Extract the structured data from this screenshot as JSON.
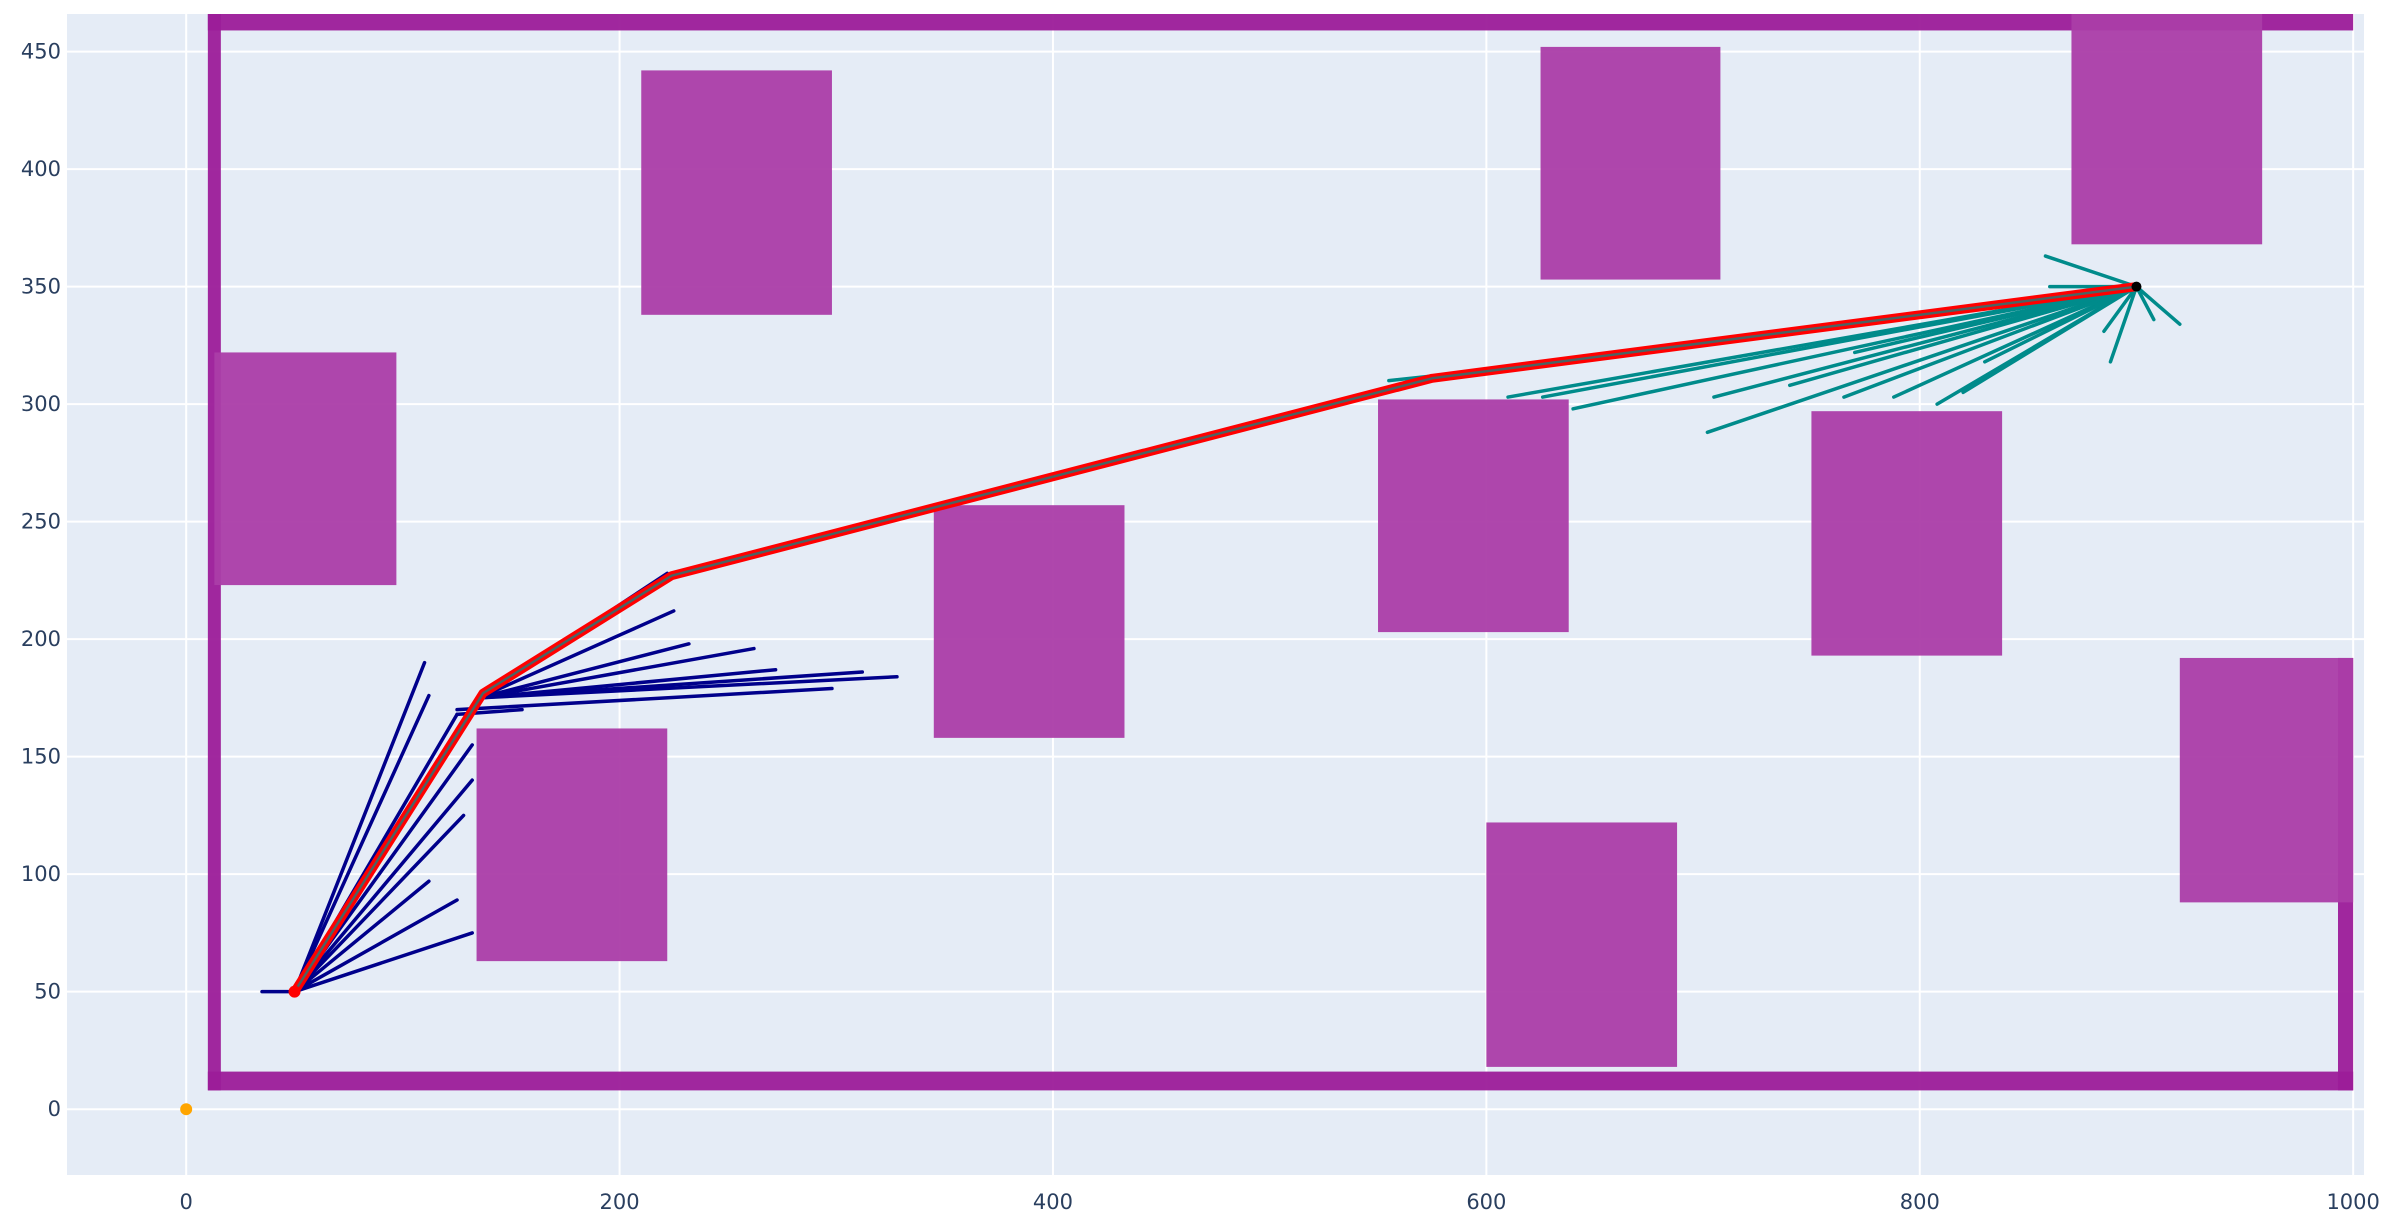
{
  "chart_data": {
    "type": "scatter",
    "title": "",
    "xlabel": "",
    "ylabel": "",
    "xlim": [
      -55,
      1005
    ],
    "ylim": [
      -28,
      466
    ],
    "grid": true,
    "legend": "none",
    "x_ticks": [
      {
        "value": 0,
        "label": "0"
      },
      {
        "value": 200,
        "label": "200"
      },
      {
        "value": 400,
        "label": "400"
      },
      {
        "value": 600,
        "label": "600"
      },
      {
        "value": 800,
        "label": "800"
      },
      {
        "value": 1000,
        "label": "1000"
      }
    ],
    "y_ticks": [
      {
        "value": 0,
        "label": "0"
      },
      {
        "value": 50,
        "label": "50"
      },
      {
        "value": 100,
        "label": "100"
      },
      {
        "value": 150,
        "label": "150"
      },
      {
        "value": 200,
        "label": "200"
      },
      {
        "value": 250,
        "label": "250"
      },
      {
        "value": 300,
        "label": "300"
      },
      {
        "value": 350,
        "label": "350"
      },
      {
        "value": 400,
        "label": "400"
      },
      {
        "value": 450,
        "label": "450"
      }
    ],
    "colors": {
      "plot_bg": "#e5ecf6",
      "grid": "#ffffff",
      "obstacle": "#ab3da8",
      "obstacle_edge": "#9c1c99",
      "tree_start": "#00008b",
      "tree_goal": "#008b8b",
      "path": "#ff0000",
      "origin": "#ffa500"
    },
    "walls": [
      {
        "x0": 10,
        "y0": 459,
        "x1": 1000,
        "y1": 466
      },
      {
        "x0": 10,
        "y0": 8,
        "x1": 1000,
        "y1": 16
      },
      {
        "x0": 10,
        "y0": 8,
        "x1": 16,
        "y1": 466
      },
      {
        "x0": 993,
        "y0": 8,
        "x1": 1000,
        "y1": 192
      }
    ],
    "obstacles": [
      {
        "x0": 210,
        "y0": 338,
        "x1": 298,
        "y1": 442
      },
      {
        "x0": 13,
        "y0": 223,
        "x1": 97,
        "y1": 322
      },
      {
        "x0": 134,
        "y0": 63,
        "x1": 222,
        "y1": 162
      },
      {
        "x0": 345,
        "y0": 158,
        "x1": 433,
        "y1": 257
      },
      {
        "x0": 550,
        "y0": 203,
        "x1": 638,
        "y1": 302
      },
      {
        "x0": 625,
        "y0": 353,
        "x1": 708,
        "y1": 452
      },
      {
        "x0": 600,
        "y0": 18,
        "x1": 688,
        "y1": 122
      },
      {
        "x0": 750,
        "y0": 193,
        "x1": 838,
        "y1": 297
      },
      {
        "x0": 870,
        "y0": 368,
        "x1": 958,
        "y1": 466
      },
      {
        "x0": 920,
        "y0": 88,
        "x1": 1000,
        "y1": 192
      }
    ],
    "start": {
      "x": 50,
      "y": 50
    },
    "goal": {
      "x": 900,
      "y": 350
    },
    "origin_point": {
      "x": 0,
      "y": 0
    },
    "start_tree_edges": [
      [
        [
          50,
          50
        ],
        [
          110,
          190
        ]
      ],
      [
        [
          50,
          50
        ],
        [
          112,
          176
        ]
      ],
      [
        [
          50,
          50
        ],
        [
          132,
          155
        ]
      ],
      [
        [
          50,
          50
        ],
        [
          132,
          140
        ]
      ],
      [
        [
          50,
          50
        ],
        [
          128,
          125
        ]
      ],
      [
        [
          50,
          50
        ],
        [
          112,
          97
        ]
      ],
      [
        [
          50,
          50
        ],
        [
          125,
          89
        ]
      ],
      [
        [
          50,
          50
        ],
        [
          132,
          75
        ]
      ],
      [
        [
          35,
          50
        ],
        [
          50,
          50
        ]
      ],
      [
        [
          50,
          50
        ],
        [
          125,
          168
        ]
      ],
      [
        [
          125,
          168
        ],
        [
          155,
          170
        ]
      ],
      [
        [
          135,
          175
        ],
        [
          225,
          212
        ]
      ],
      [
        [
          135,
          175
        ],
        [
          232,
          198
        ]
      ],
      [
        [
          135,
          175
        ],
        [
          262,
          196
        ]
      ],
      [
        [
          135,
          175
        ],
        [
          272,
          187
        ]
      ],
      [
        [
          135,
          175
        ],
        [
          312,
          186
        ]
      ],
      [
        [
          135,
          175
        ],
        [
          328,
          184
        ]
      ],
      [
        [
          125,
          170
        ],
        [
          298,
          179
        ]
      ],
      [
        [
          135,
          175
        ],
        [
          222,
          228
        ]
      ]
    ],
    "goal_tree_edges": [
      [
        [
          900,
          350
        ],
        [
          858,
          363
        ]
      ],
      [
        [
          900,
          350
        ],
        [
          860,
          350
        ]
      ],
      [
        [
          900,
          350
        ],
        [
          920,
          334
        ]
      ],
      [
        [
          900,
          350
        ],
        [
          908,
          336
        ]
      ],
      [
        [
          900,
          350
        ],
        [
          888,
          318
        ]
      ],
      [
        [
          900,
          350
        ],
        [
          885,
          331
        ]
      ],
      [
        [
          900,
          350
        ],
        [
          610,
          303
        ]
      ],
      [
        [
          900,
          350
        ],
        [
          626,
          303
        ]
      ],
      [
        [
          900,
          350
        ],
        [
          640,
          298
        ]
      ],
      [
        [
          900,
          350
        ],
        [
          702,
          288
        ]
      ],
      [
        [
          900,
          350
        ],
        [
          705,
          303
        ]
      ],
      [
        [
          900,
          350
        ],
        [
          740,
          308
        ]
      ],
      [
        [
          900,
          350
        ],
        [
          765,
          303
        ]
      ],
      [
        [
          900,
          350
        ],
        [
          788,
          303
        ]
      ],
      [
        [
          900,
          350
        ],
        [
          808,
          300
        ]
      ],
      [
        [
          900,
          350
        ],
        [
          820,
          305
        ]
      ],
      [
        [
          900,
          350
        ],
        [
          770,
          322
        ]
      ],
      [
        [
          900,
          350
        ],
        [
          830,
          318
        ]
      ],
      [
        [
          900,
          350
        ],
        [
          575,
          312
        ]
      ],
      [
        [
          575,
          312
        ],
        [
          555,
          310
        ]
      ]
    ],
    "path": [
      {
        "x": 50,
        "y": 50
      },
      {
        "x": 137,
        "y": 177
      },
      {
        "x": 224,
        "y": 227
      },
      {
        "x": 575,
        "y": 311
      },
      {
        "x": 900,
        "y": 350
      }
    ]
  }
}
